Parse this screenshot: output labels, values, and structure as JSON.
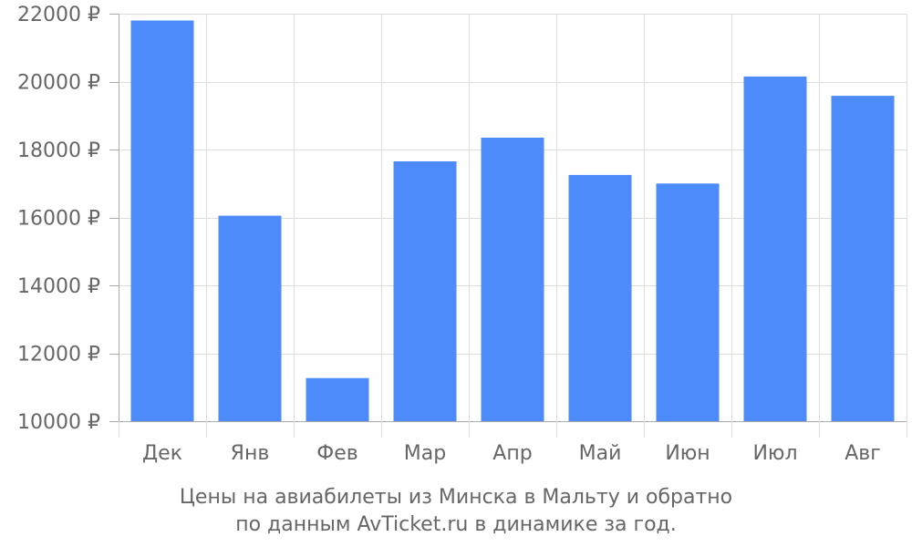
{
  "chart_data": {
    "type": "bar",
    "categories": [
      "Дек",
      "Янв",
      "Фев",
      "Мар",
      "Апр",
      "Май",
      "Июн",
      "Июл",
      "Авг"
    ],
    "values": [
      21800,
      16050,
      11270,
      17650,
      18350,
      17250,
      17000,
      20150,
      19580
    ],
    "ylim": [
      10000,
      22000
    ],
    "yticks": [
      10000,
      12000,
      14000,
      16000,
      18000,
      20000,
      22000
    ],
    "ytick_labels": [
      "10000 ₽",
      "12000 ₽",
      "14000 ₽",
      "16000 ₽",
      "18000 ₽",
      "20000 ₽",
      "22000 ₽"
    ],
    "grid": true,
    "bar_color": "#4d8afa",
    "grid_color": "#dddddd",
    "axis_color": "#aaaaaa",
    "text_color": "#666666"
  },
  "caption": {
    "line1": "Цены на авиабилеты из Минска в Мальту и обратно",
    "line2": "по данным AvTicket.ru в динамике за год."
  }
}
